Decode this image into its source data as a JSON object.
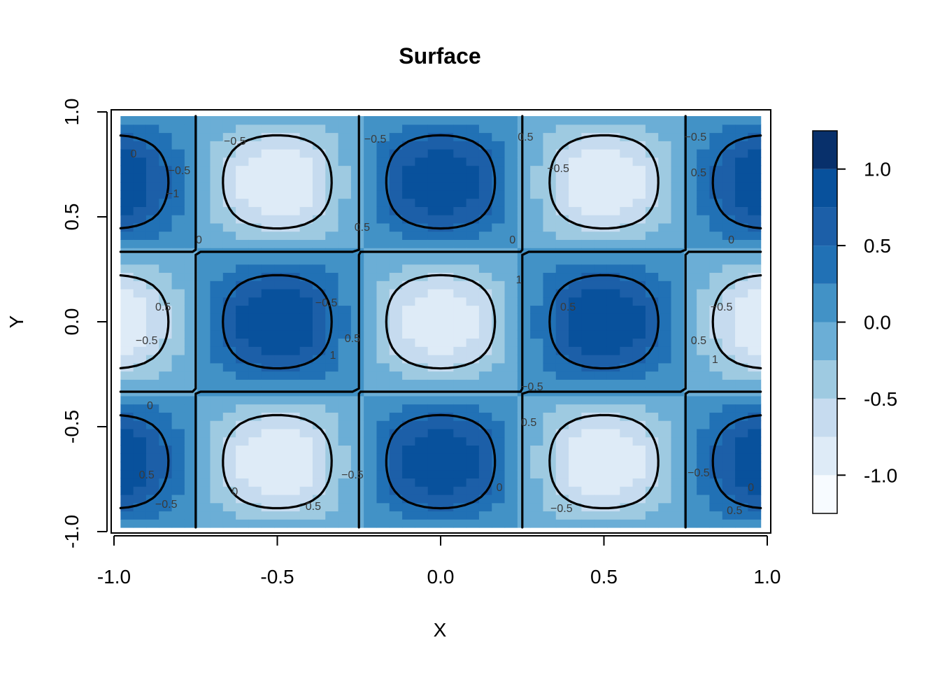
{
  "chart_data": {
    "type": "heatmap",
    "title": "Surface",
    "xlabel": "X",
    "ylabel": "Y",
    "xlim": [
      -1.0,
      1.0
    ],
    "ylim": [
      -1.0,
      1.0
    ],
    "x_ticks": [
      -1.0,
      -0.5,
      0.0,
      0.5,
      1.0
    ],
    "y_ticks": [
      -1.0,
      -0.5,
      0.0,
      0.5,
      1.0
    ],
    "x_tick_labels": [
      "-1.0",
      "-0.5",
      "0.0",
      "0.5",
      "1.0"
    ],
    "y_tick_labels": [
      "-1.0",
      "-0.5",
      "0.0",
      "0.5",
      "1.0"
    ],
    "grid": false,
    "surface_model": {
      "expression": "cos(2*pi*x) * sin(1.5*pi*(y+1))",
      "x_frequency": 1.0,
      "y_frequency": 0.75,
      "amplitude": 1.0
    },
    "colorbar": {
      "range": [
        -1.25,
        1.25
      ],
      "breaks": [
        -1.25,
        -1.0,
        -0.75,
        -0.5,
        -0.25,
        0.0,
        0.25,
        0.5,
        0.75,
        1.0,
        1.25
      ],
      "colors": [
        "#f7fbff",
        "#deebf7",
        "#c6dbef",
        "#9ecae1",
        "#6baed6",
        "#4292c6",
        "#2171b5",
        "#1c5fa8",
        "#08519c",
        "#08306b"
      ],
      "ticks": [
        -1.0,
        -0.5,
        0.0,
        0.5,
        1.0
      ],
      "tick_labels": [
        "-1.0",
        "-0.5",
        "0.0",
        "0.5",
        "1.0"
      ]
    },
    "contours": {
      "levels": [
        -1.0,
        -0.5,
        0.0,
        0.5,
        1.0
      ],
      "labels": [
        {
          "text": "-0.5",
          "x": -0.63,
          "y": 0.86
        },
        {
          "text": "-0.5",
          "x": -0.2,
          "y": 0.87
        },
        {
          "text": "0.5",
          "x": 0.26,
          "y": 0.88
        },
        {
          "text": "-0.5",
          "x": 0.78,
          "y": 0.88
        },
        {
          "text": "0",
          "x": -0.94,
          "y": 0.8
        },
        {
          "text": "-0.5",
          "x": -0.8,
          "y": 0.72
        },
        {
          "text": "-0.5",
          "x": 0.36,
          "y": 0.73
        },
        {
          "text": "0.5",
          "x": 0.79,
          "y": 0.71
        },
        {
          "text": "-1",
          "x": -0.82,
          "y": 0.61
        },
        {
          "text": "0.5",
          "x": -0.24,
          "y": 0.45
        },
        {
          "text": "0",
          "x": -0.74,
          "y": 0.39
        },
        {
          "text": "0",
          "x": 0.22,
          "y": 0.39
        },
        {
          "text": "0",
          "x": 0.89,
          "y": 0.39
        },
        {
          "text": "-0.5",
          "x": -0.35,
          "y": 0.09
        },
        {
          "text": "0.5",
          "x": -0.85,
          "y": 0.07
        },
        {
          "text": "0.5",
          "x": 0.39,
          "y": 0.07
        },
        {
          "text": "-0.5",
          "x": 0.86,
          "y": 0.07
        },
        {
          "text": "1",
          "x": 0.24,
          "y": 0.2
        },
        {
          "text": "-0.5",
          "x": -0.9,
          "y": -0.09
        },
        {
          "text": "0.5",
          "x": -0.27,
          "y": -0.08
        },
        {
          "text": "0.5",
          "x": 0.79,
          "y": -0.09
        },
        {
          "text": "1",
          "x": -0.33,
          "y": -0.16
        },
        {
          "text": "1",
          "x": 0.84,
          "y": -0.18
        },
        {
          "text": "-0.5",
          "x": 0.28,
          "y": -0.31
        },
        {
          "text": "0",
          "x": -0.89,
          "y": -0.4
        },
        {
          "text": "0.5",
          "x": 0.27,
          "y": -0.48
        },
        {
          "text": "0.5",
          "x": -0.9,
          "y": -0.73
        },
        {
          "text": "-0.5",
          "x": -0.27,
          "y": -0.73
        },
        {
          "text": "-0.5",
          "x": 0.79,
          "y": -0.72
        },
        {
          "text": "0",
          "x": 0.18,
          "y": -0.79
        },
        {
          "text": "0",
          "x": -0.63,
          "y": -0.81
        },
        {
          "text": "0",
          "x": 0.95,
          "y": -0.79
        },
        {
          "text": "-0.5",
          "x": -0.84,
          "y": -0.87
        },
        {
          "text": "0.5",
          "x": -0.39,
          "y": -0.88
        },
        {
          "text": "-0.5",
          "x": 0.37,
          "y": -0.89
        },
        {
          "text": "0.5",
          "x": 0.9,
          "y": -0.9
        }
      ]
    }
  }
}
